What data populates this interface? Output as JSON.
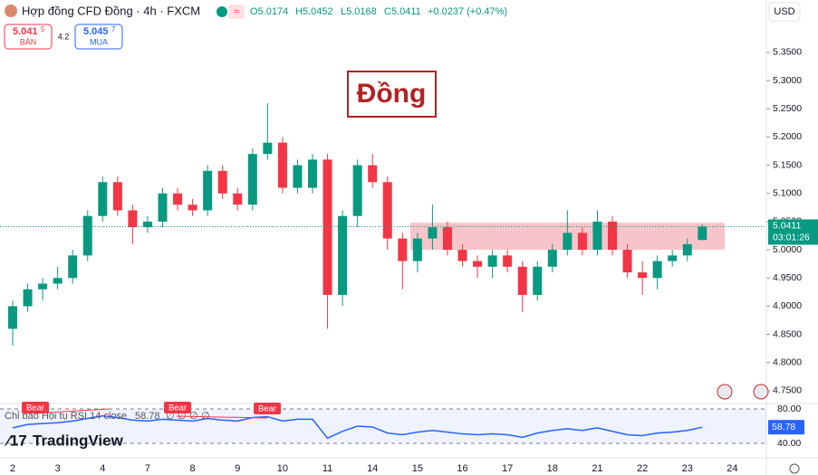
{
  "header": {
    "title": "Hợp đồng CFD Đồng · 4h · FXCM",
    "ohlc": [
      "O5.0174",
      "H5.0452",
      "L5.0168",
      "C5.0411"
    ],
    "change": "+0.0237 (+0.47%)",
    "sell": {
      "price": "5.041",
      "pip": "5",
      "label": "BÁN"
    },
    "spread": "4.2",
    "buy": {
      "price": "5.045",
      "pip": "7",
      "label": "MUA"
    },
    "currency": "USD",
    "brand": "TradingView",
    "watermark": "Đồng"
  },
  "chart_data": [
    {
      "type": "candlestick",
      "up_color": "#089981",
      "down_color": "#f23645",
      "categories": [
        "2",
        null,
        null,
        "3",
        null,
        null,
        "4",
        null,
        null,
        "7",
        null,
        null,
        "8",
        null,
        null,
        "9",
        null,
        null,
        "10",
        null,
        null,
        "11",
        null,
        null,
        "14",
        null,
        null,
        "15",
        null,
        null,
        "16",
        null,
        null,
        "17",
        null,
        null,
        "18",
        null,
        null,
        "21",
        null,
        null,
        "22",
        null,
        null,
        "23",
        null,
        null,
        "24"
      ],
      "open": [
        4.86,
        4.9,
        4.93,
        4.94,
        4.95,
        4.99,
        5.06,
        5.12,
        5.07,
        5.04,
        5.05,
        5.1,
        5.08,
        5.07,
        5.14,
        5.1,
        5.08,
        5.17,
        5.19,
        5.11,
        5.11,
        5.16,
        4.92,
        5.06,
        5.15,
        5.12,
        5.02,
        4.98,
        5.02,
        5.04,
        5.0,
        4.98,
        4.97,
        4.99,
        4.97,
        4.92,
        4.97,
        5.0,
        5.03,
        5.0,
        5.05,
        5.0,
        4.96,
        4.95,
        4.98,
        4.99,
        5.0174,
        null,
        null
      ],
      "high": [
        4.91,
        4.94,
        4.95,
        4.97,
        5.0,
        5.07,
        5.13,
        5.13,
        5.08,
        5.06,
        5.11,
        5.11,
        5.09,
        5.15,
        5.15,
        5.11,
        5.18,
        5.26,
        5.2,
        5.16,
        5.17,
        5.17,
        5.07,
        5.16,
        5.17,
        5.13,
        5.03,
        5.03,
        5.08,
        5.05,
        5.01,
        4.99,
        5.0,
        5.0,
        4.98,
        4.98,
        5.01,
        5.07,
        5.04,
        5.07,
        5.06,
        5.01,
        4.98,
        4.99,
        5.0,
        5.02,
        5.0452,
        null,
        null
      ],
      "low": [
        4.83,
        4.89,
        4.91,
        4.93,
        4.94,
        4.98,
        5.05,
        5.06,
        5.01,
        5.03,
        5.04,
        5.07,
        5.06,
        5.06,
        5.09,
        5.07,
        5.07,
        5.16,
        5.1,
        5.1,
        5.1,
        4.86,
        4.9,
        5.04,
        5.11,
        5.0,
        4.93,
        4.96,
        5.0,
        4.99,
        4.97,
        4.95,
        4.95,
        4.96,
        4.89,
        4.91,
        4.96,
        4.99,
        4.99,
        4.99,
        4.99,
        4.95,
        4.92,
        4.93,
        4.97,
        4.98,
        5.0168,
        null,
        null
      ],
      "close": [
        4.9,
        4.93,
        4.94,
        4.95,
        4.99,
        5.06,
        5.12,
        5.07,
        5.04,
        5.05,
        5.1,
        5.08,
        5.07,
        5.14,
        5.1,
        5.08,
        5.17,
        5.19,
        5.11,
        5.15,
        5.16,
        4.92,
        5.06,
        5.15,
        5.12,
        5.02,
        4.98,
        5.02,
        5.04,
        5.0,
        4.98,
        4.97,
        4.99,
        4.97,
        4.92,
        4.97,
        5.0,
        5.03,
        5.0,
        5.05,
        5.0,
        4.96,
        4.95,
        4.98,
        4.99,
        5.01,
        5.0411,
        null,
        null
      ],
      "ylim": [
        4.729,
        5.443
      ],
      "yticks": [
        {
          "value": 4.75,
          "label": "4.7500"
        },
        {
          "value": 4.8,
          "label": "4.8000"
        },
        {
          "value": 4.85,
          "label": "4.8500"
        },
        {
          "value": 4.9,
          "label": "4.9000"
        },
        {
          "value": 4.95,
          "label": "4.9500"
        },
        {
          "value": 5.0,
          "label": "5.0000"
        },
        {
          "value": 5.05,
          "label": "5.0500"
        },
        {
          "value": 5.1,
          "label": "5.1000"
        },
        {
          "value": 5.15,
          "label": "5.1500"
        },
        {
          "value": 5.2,
          "label": "5.2000"
        },
        {
          "value": 5.25,
          "label": "5.2500"
        },
        {
          "value": 5.3,
          "label": "5.3000"
        },
        {
          "value": 5.35,
          "label": "5.3500"
        }
      ],
      "zone": {
        "from": 5.0,
        "to": 5.048,
        "color": "#f7c5c9"
      },
      "last_price": {
        "value": 5.0411,
        "label": "5.0411"
      },
      "countdown": "03:01:26"
    },
    {
      "type": "line",
      "title": "Chỉ báo Hội tụ RSI 14 close",
      "last_label": "58.78",
      "series": [
        {
          "name": "RSI",
          "color": "#2962ff",
          "values": [
            58,
            62,
            63,
            64,
            66,
            69,
            72,
            70,
            67,
            66,
            68,
            67,
            66,
            69,
            67,
            66,
            70,
            71,
            66,
            68,
            68,
            46,
            54,
            60,
            59,
            52,
            50,
            53,
            55,
            53,
            51,
            50,
            51,
            50,
            47,
            52,
            55,
            57,
            55,
            58,
            54,
            50,
            49,
            52,
            53,
            55,
            58.78,
            null,
            null
          ]
        }
      ],
      "ylim": [
        24.2,
        85.3
      ],
      "yticks": [
        {
          "value": 40,
          "label": "40.00"
        },
        {
          "value": 80,
          "label": "80.00"
        }
      ],
      "extras": [
        "∅",
        "∅",
        "∅",
        "∅"
      ],
      "annotations": [
        "Bear",
        "Bear",
        "Bear"
      ]
    }
  ]
}
